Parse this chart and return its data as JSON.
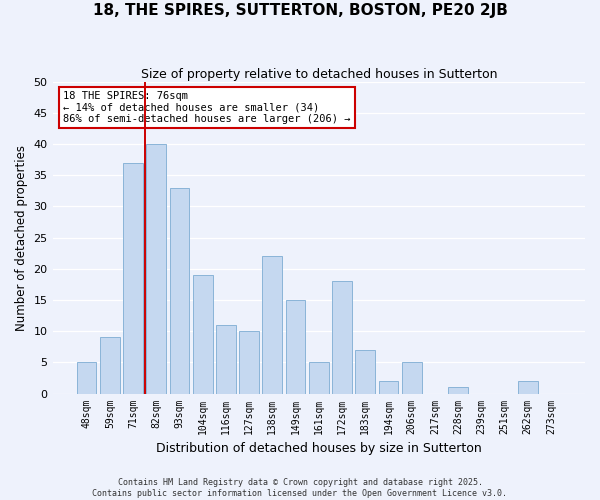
{
  "title": "18, THE SPIRES, SUTTERTON, BOSTON, PE20 2JB",
  "subtitle": "Size of property relative to detached houses in Sutterton",
  "xlabel": "Distribution of detached houses by size in Sutterton",
  "ylabel": "Number of detached properties",
  "bar_labels": [
    "48sqm",
    "59sqm",
    "71sqm",
    "82sqm",
    "93sqm",
    "104sqm",
    "116sqm",
    "127sqm",
    "138sqm",
    "149sqm",
    "161sqm",
    "172sqm",
    "183sqm",
    "194sqm",
    "206sqm",
    "217sqm",
    "228sqm",
    "239sqm",
    "251sqm",
    "262sqm",
    "273sqm"
  ],
  "bar_values": [
    5,
    9,
    37,
    40,
    33,
    19,
    11,
    10,
    22,
    15,
    5,
    18,
    7,
    2,
    5,
    0,
    1,
    0,
    0,
    2,
    0
  ],
  "bar_color": "#c5d8f0",
  "bar_edge_color": "#8ab4d8",
  "vline_x_idx": 2.5,
  "vline_color": "#cc0000",
  "ylim": [
    0,
    50
  ],
  "yticks": [
    0,
    5,
    10,
    15,
    20,
    25,
    30,
    35,
    40,
    45,
    50
  ],
  "annotation_title": "18 THE SPIRES: 76sqm",
  "annotation_line1": "← 14% of detached houses are smaller (34)",
  "annotation_line2": "86% of semi-detached houses are larger (206) →",
  "annotation_box_facecolor": "#ffffff",
  "annotation_box_edgecolor": "#cc0000",
  "bg_color": "#eef2fc",
  "grid_color": "#ffffff",
  "footer_line1": "Contains HM Land Registry data © Crown copyright and database right 2025.",
  "footer_line2": "Contains public sector information licensed under the Open Government Licence v3.0."
}
